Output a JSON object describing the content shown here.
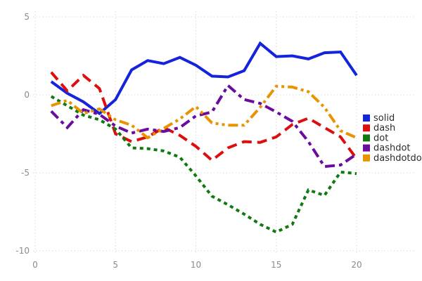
{
  "chart_data": {
    "type": "line",
    "title": "",
    "xlabel": "",
    "ylabel": "",
    "xlim": [
      0,
      23.5
    ],
    "ylim": [
      -10.8,
      5.4
    ],
    "grid": "dotted",
    "legend_position": "right",
    "xticks": [
      0,
      5,
      10,
      15,
      20
    ],
    "yticks": [
      5,
      0,
      -5,
      -10
    ],
    "x": [
      1,
      2,
      3,
      4,
      5,
      6,
      7,
      8,
      9,
      10,
      11,
      12,
      13,
      14,
      15,
      16,
      17,
      18,
      19,
      20
    ],
    "series": [
      {
        "name": "solid",
        "color": "#1423dc",
        "dash_style": "solid",
        "values": [
          0.85,
          0.1,
          -0.45,
          -1.2,
          -0.3,
          1.6,
          2.2,
          2.0,
          2.4,
          1.9,
          1.2,
          1.15,
          1.55,
          3.3,
          2.45,
          2.5,
          2.3,
          2.7,
          2.75,
          1.25
        ]
      },
      {
        "name": "dash",
        "color": "#dc0e0e",
        "dash_style": "dash",
        "values": [
          1.45,
          0.25,
          1.25,
          0.4,
          -2.5,
          -3.0,
          -2.7,
          -2.1,
          -2.6,
          -3.3,
          -4.2,
          -3.4,
          -3.0,
          -3.05,
          -2.7,
          -1.9,
          -1.5,
          -2.1,
          -2.7,
          -4.1
        ]
      },
      {
        "name": "dot",
        "color": "#107a10",
        "dash_style": "dot",
        "values": [
          -0.1,
          -0.7,
          -1.3,
          -1.6,
          -2.2,
          -3.4,
          -3.45,
          -3.6,
          -4.0,
          -5.2,
          -6.5,
          -7.05,
          -7.65,
          -8.3,
          -8.8,
          -8.3,
          -6.1,
          -6.45,
          -4.95,
          -5.05
        ]
      },
      {
        "name": "dashdot",
        "color": "#6a0d9e",
        "dash_style": "dashdot",
        "values": [
          -1.05,
          -2.1,
          -0.95,
          -1.25,
          -2.0,
          -2.45,
          -2.2,
          -2.35,
          -2.1,
          -1.35,
          -1.1,
          0.6,
          -0.3,
          -0.55,
          -1.1,
          -1.7,
          -3.0,
          -4.6,
          -4.5,
          -3.8
        ]
      },
      {
        "name": "dashdotdot",
        "color": "#e89400",
        "dash_style": "dashdotdot",
        "values": [
          -0.7,
          -0.35,
          -1.2,
          -0.9,
          -1.6,
          -1.95,
          -2.75,
          -2.15,
          -1.55,
          -0.75,
          -1.8,
          -1.95,
          -1.95,
          -0.8,
          0.55,
          0.5,
          0.2,
          -0.8,
          -2.3,
          -2.75
        ]
      }
    ],
    "legend_items": [
      "solid",
      "dash",
      "dot",
      "dashdot",
      "dashdotdot"
    ],
    "style": {
      "grid_color": "#d9d9e3",
      "tick_label_color": "#8a8a8a",
      "legend_text_color": "#2b2b2b",
      "background_color": "#ffffff",
      "line_width": 4
    }
  }
}
